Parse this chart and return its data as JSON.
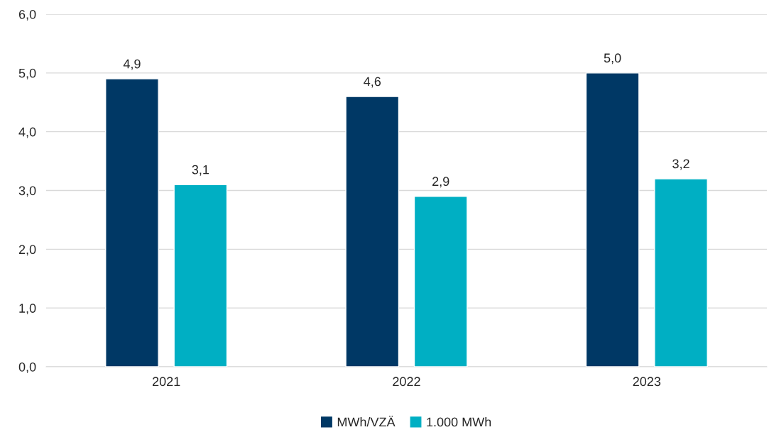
{
  "chart_data": {
    "type": "bar",
    "categories": [
      "2021",
      "2022",
      "2023"
    ],
    "series": [
      {
        "name": "MWh/VZÄ",
        "color": "#003865",
        "values": [
          4.9,
          4.6,
          5.0
        ],
        "value_labels": [
          "4,9",
          "4,6",
          "5,0"
        ]
      },
      {
        "name": "1.000 MWh",
        "color": "#00afc3",
        "values": [
          3.1,
          2.9,
          3.2
        ],
        "value_labels": [
          "3,1",
          "2,9",
          "3,2"
        ]
      }
    ],
    "ylim": [
      0,
      6
    ],
    "yticks": [
      {
        "value": 0,
        "label": "0,0"
      },
      {
        "value": 1,
        "label": "1,0"
      },
      {
        "value": 2,
        "label": "2,0"
      },
      {
        "value": 3,
        "label": "3,0"
      },
      {
        "value": 4,
        "label": "4,0"
      },
      {
        "value": 5,
        "label": "5,0"
      },
      {
        "value": 6,
        "label": "6,0"
      }
    ],
    "grid": "y",
    "legend": "bottom"
  }
}
